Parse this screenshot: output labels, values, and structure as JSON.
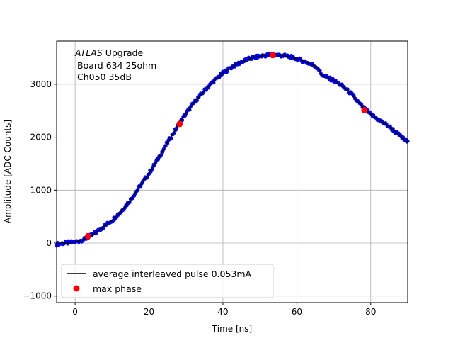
{
  "chart_data": {
    "type": "scatter",
    "title": "",
    "xlabel": "Time [ns]",
    "ylabel": "Amplitude [ADC Counts]",
    "xlim": [
      -5,
      90
    ],
    "ylim": [
      -1124,
      3815
    ],
    "grid": true,
    "xticks": [
      0,
      20,
      40,
      60,
      80
    ],
    "yticks": [
      -1000,
      0,
      1000,
      2000,
      3000
    ],
    "annotation": {
      "italic": "ATLAS",
      "rest": " Upgrade",
      "line2": "Board 634 25ohm",
      "line3": "Ch050 35dB"
    },
    "legend": {
      "placement": "lower-left",
      "entries": [
        "average interleaved pulse 0.053mA",
        "max phase"
      ]
    },
    "series": [
      {
        "name": "average interleaved pulse 0.053mA",
        "kind": "line",
        "color": "#000000",
        "x": [
          -5,
          -2.5,
          0,
          2.5,
          5,
          7.5,
          10,
          12.5,
          15,
          17.5,
          20,
          22.5,
          25,
          27.5,
          30,
          32.5,
          35,
          37.5,
          40,
          42.5,
          45,
          47.5,
          50,
          52.5,
          55,
          57.5,
          60,
          62.5,
          65,
          65.8,
          66.5,
          67.5,
          70,
          72.5,
          75,
          77.5,
          80,
          82.5,
          85,
          87.5,
          90
        ],
        "y": [
          -20,
          5,
          20,
          70,
          170,
          300,
          430,
          600,
          820,
          1070,
          1320,
          1600,
          1900,
          2180,
          2450,
          2680,
          2880,
          3060,
          3210,
          3330,
          3420,
          3490,
          3530,
          3555,
          3550,
          3530,
          3480,
          3420,
          3340,
          3300,
          3200,
          3150,
          3070,
          2960,
          2800,
          2590,
          2430,
          2310,
          2200,
          2050,
          1900
        ]
      },
      {
        "name": "samples",
        "kind": "scatter",
        "color": "#0000ff"
      },
      {
        "name": "max phase",
        "kind": "scatter",
        "color": "#ff0000",
        "x": [
          3.5,
          28.3,
          53.5,
          78.3
        ],
        "y": [
          130,
          2250,
          3550,
          2510
        ]
      }
    ]
  }
}
